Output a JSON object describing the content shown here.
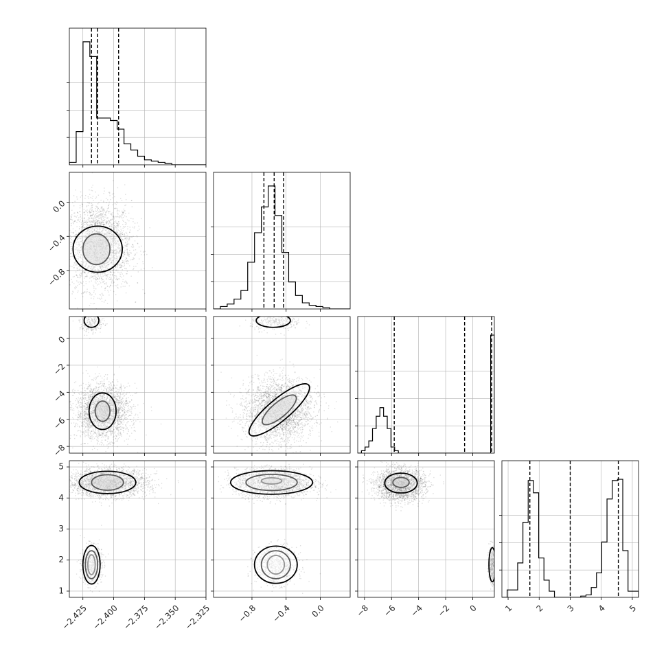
{
  "chart_data": {
    "type": "corner",
    "grid": true,
    "params": [
      {
        "range": [
          -2.436,
          -2.325
        ],
        "ticks": [
          -2.425,
          -2.4,
          -2.375,
          -2.35,
          -2.325
        ],
        "tick_labels": [
          "−2.425",
          "−2.400",
          "−2.375",
          "−2.350",
          "−2.325"
        ],
        "quantiles": [
          -2.418,
          -2.413,
          -2.396
        ]
      },
      {
        "range": [
          -1.25,
          0.35
        ],
        "ticks": [
          -0.8,
          -0.4,
          0.0
        ],
        "tick_labels": [
          "−0.8",
          "−0.4",
          "0.0"
        ],
        "quantiles": [
          -0.66,
          -0.54,
          -0.43
        ]
      },
      {
        "range": [
          -8.5,
          1.6
        ],
        "ticks": [
          -8,
          -6,
          -4,
          -2,
          0
        ],
        "tick_labels": [
          "−8",
          "−6",
          "−4",
          "−2",
          "0"
        ],
        "quantiles": [
          -5.8,
          -0.6,
          1.4
        ]
      },
      {
        "range": [
          0.8,
          5.2
        ],
        "ticks": [
          1,
          2,
          3,
          4,
          5
        ],
        "tick_labels": [
          "1",
          "2",
          "3",
          "4",
          "5"
        ],
        "quantiles": [
          1.7,
          3.0,
          4.55
        ]
      }
    ],
    "histograms": [
      [
        0.02,
        0.27,
        1.0,
        0.88,
        0.38,
        0.38,
        0.36,
        0.29,
        0.17,
        0.12,
        0.07,
        0.04,
        0.03,
        0.02,
        0.01,
        0,
        0,
        0,
        0,
        0
      ],
      [
        0,
        0.02,
        0.04,
        0.08,
        0.15,
        0.38,
        0.62,
        0.83,
        1.0,
        0.76,
        0.46,
        0.22,
        0.11,
        0.05,
        0.03,
        0.02,
        0.01,
        0,
        0,
        0
      ],
      [
        0.0,
        0.02,
        0.05,
        0.1,
        0.2,
        0.3,
        0.37,
        0.3,
        0.2,
        0.05,
        0.02,
        0.0,
        0,
        0,
        0,
        0,
        0,
        0,
        0,
        0,
        0,
        0,
        0,
        0,
        0,
        0,
        0,
        0,
        0,
        0,
        0,
        0,
        0,
        0,
        0,
        0,
        0.96
      ],
      [
        0.0,
        0.06,
        0.06,
        0.28,
        0.61,
        0.95,
        0.85,
        0.32,
        0.14,
        0.05,
        0.0,
        0.0,
        0.0,
        0.0,
        0.0,
        0.01,
        0.02,
        0.08,
        0.2,
        0.45,
        0.8,
        0.95,
        0.96,
        0.38,
        0.05,
        0.05
      ]
    ],
    "blobs": {
      "1_0": [
        {
          "cx": -2.412,
          "cy": -0.5,
          "sx": 0.013,
          "sy": 0.26,
          "n": 2600,
          "rot": 0
        }
      ],
      "2_0": [
        {
          "cx": -2.409,
          "cy": -5.4,
          "sx": 0.011,
          "sy": 1.0,
          "n": 2400,
          "rot": 0
        },
        {
          "cx": -2.418,
          "cy": 1.2,
          "sx": 0.005,
          "sy": 0.4,
          "n": 250,
          "rot": 0
        }
      ],
      "2_1": [
        {
          "cx": -0.5,
          "cy": -5.3,
          "sx": 0.2,
          "sy": 1.2,
          "n": 2600,
          "rot": 0.45
        },
        {
          "cx": -0.52,
          "cy": 1.2,
          "sx": 0.15,
          "sy": 0.3,
          "n": 300,
          "rot": 0
        }
      ],
      "3_0": [
        {
          "cx": -2.405,
          "cy": 4.5,
          "sx": 0.016,
          "sy": 0.22,
          "n": 2300,
          "rot": 0
        },
        {
          "cx": -2.418,
          "cy": 1.85,
          "sx": 0.004,
          "sy": 0.3,
          "n": 700,
          "rot": 0
        }
      ],
      "3_1": [
        {
          "cx": -0.55,
          "cy": 4.5,
          "sx": 0.22,
          "sy": 0.22,
          "n": 2300,
          "rot": 0
        },
        {
          "cx": -0.52,
          "cy": 1.85,
          "sx": 0.12,
          "sy": 0.3,
          "n": 700,
          "rot": 0
        }
      ],
      "3_2": [
        {
          "cx": -5.4,
          "cy": 4.45,
          "sx": 0.9,
          "sy": 0.25,
          "n": 2300,
          "rot": 0
        },
        {
          "cx": 1.4,
          "cy": 1.85,
          "sx": 0.12,
          "sy": 0.3,
          "n": 400,
          "rot": 0
        }
      ]
    },
    "contours": {
      "1_0": [
        {
          "cx": -2.414,
          "cy": -0.55,
          "rx": 0.011,
          "ry": 0.18
        },
        {
          "cx": -2.413,
          "cy": -0.55,
          "rx": 0.02,
          "ry": 0.27
        }
      ],
      "2_0": [
        {
          "cx": -2.409,
          "cy": -5.4,
          "rx": 0.006,
          "ry": 0.75
        },
        {
          "cx": -2.409,
          "cy": -5.4,
          "rx": 0.011,
          "ry": 1.35
        },
        {
          "cx": -2.418,
          "cy": 1.3,
          "rx": 0.006,
          "ry": 0.5
        }
      ],
      "2_1": [
        {
          "cx": -0.48,
          "cy": -5.3,
          "rx": 0.25,
          "ry": 0.55,
          "rot": -40
        },
        {
          "cx": -0.48,
          "cy": -5.3,
          "rx": 0.45,
          "ry": 0.8,
          "rot": -40
        },
        {
          "cx": -0.55,
          "cy": 1.3,
          "rx": 0.2,
          "ry": 0.5
        }
      ],
      "3_0": [
        {
          "cx": -2.405,
          "cy": 4.5,
          "rx": 0.013,
          "ry": 0.25
        },
        {
          "cx": -2.405,
          "cy": 4.5,
          "rx": 0.023,
          "ry": 0.36
        },
        {
          "cx": -2.418,
          "cy": 1.85,
          "rx": 0.003,
          "ry": 0.32
        },
        {
          "cx": -2.418,
          "cy": 1.85,
          "rx": 0.005,
          "ry": 0.45
        },
        {
          "cx": -2.418,
          "cy": 1.85,
          "rx": 0.007,
          "ry": 0.62
        }
      ],
      "3_1": [
        {
          "cx": -0.57,
          "cy": 4.55,
          "rx": 0.12,
          "ry": 0.1
        },
        {
          "cx": -0.57,
          "cy": 4.5,
          "rx": 0.3,
          "ry": 0.26
        },
        {
          "cx": -0.57,
          "cy": 4.5,
          "rx": 0.48,
          "ry": 0.38
        },
        {
          "cx": -0.52,
          "cy": 1.85,
          "rx": 0.1,
          "ry": 0.3
        },
        {
          "cx": -0.52,
          "cy": 1.85,
          "rx": 0.17,
          "ry": 0.45
        },
        {
          "cx": -0.52,
          "cy": 1.85,
          "rx": 0.25,
          "ry": 0.6
        }
      ],
      "3_2": [
        {
          "cx": -5.3,
          "cy": 4.5,
          "rx": 0.6,
          "ry": 0.16
        },
        {
          "cx": -5.3,
          "cy": 4.48,
          "rx": 1.2,
          "ry": 0.32
        },
        {
          "cx": 1.45,
          "cy": 1.85,
          "rx": 0.25,
          "ry": 0.55
        }
      ]
    }
  }
}
